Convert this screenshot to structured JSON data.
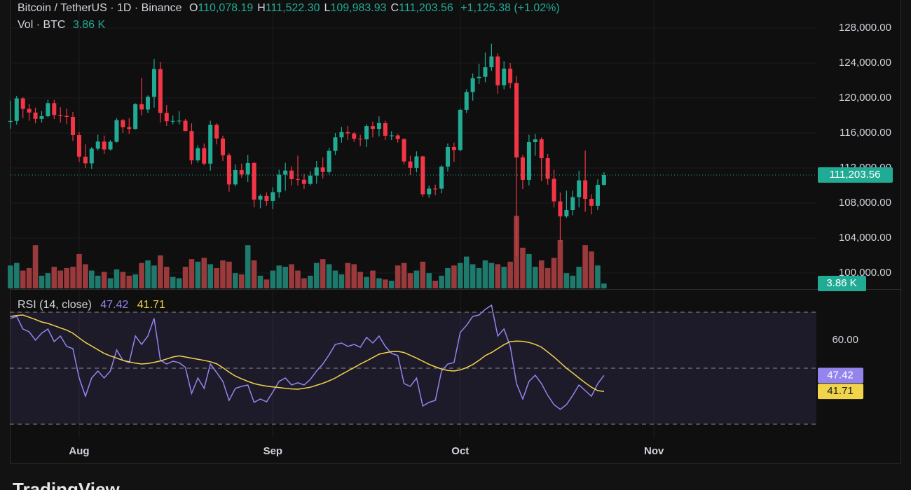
{
  "header": {
    "symbol": "Bitcoin / TetherUS · 1D · Binance",
    "ohlc": [
      {
        "key": "O",
        "value": "110,078.19"
      },
      {
        "key": "H",
        "value": "111,522.30"
      },
      {
        "key": "L",
        "value": "109,983.93"
      },
      {
        "key": "C",
        "value": "111,203.56"
      }
    ],
    "change": "+1,125.38 (+1.02%)",
    "vol_label": "Vol · BTC",
    "vol_value": "3.86 K"
  },
  "rsi_header": {
    "label": "RSI (14, close)",
    "rsi_value": "47.42",
    "ma_value": "41.71"
  },
  "footer": {
    "brand": "TradingView"
  },
  "chart_data": [
    {
      "type": "candlestick",
      "up_color": "#22ab94",
      "down_color": "#f23645",
      "xlim": [
        -0.1,
        129
      ],
      "xticks": [
        {
          "value": 11,
          "label": "Aug"
        },
        {
          "value": 42,
          "label": "Sep"
        },
        {
          "value": 72,
          "label": "Oct"
        },
        {
          "value": 103,
          "label": "Nov"
        }
      ],
      "ylim": [
        98240,
        131200
      ],
      "yticks": [
        {
          "value": 100000,
          "label": "100,000.00"
        },
        {
          "value": 104000,
          "label": "104,000.00"
        },
        {
          "value": 108000,
          "label": "108,000.00"
        },
        {
          "value": 112000,
          "label": "112,000.00"
        },
        {
          "value": 116000,
          "label": "116,000.00"
        },
        {
          "value": 120000,
          "label": "120,000.00"
        },
        {
          "value": 124000,
          "label": "124,000.00"
        },
        {
          "value": 128000,
          "label": "128,000.00"
        }
      ],
      "grid": true,
      "last_label": "111,203.56",
      "open": [
        117265,
        117380,
        119954,
        118755,
        118340,
        117614,
        117919,
        119415,
        118062,
        117950,
        117840,
        115764,
        113297,
        112527,
        114208,
        115020,
        114120,
        114992,
        117470,
        116670,
        116462,
        119294,
        118686,
        120134,
        123306,
        118295,
        117342,
        117380,
        117405,
        116227,
        112872,
        114271,
        112500,
        116935,
        115374,
        113458,
        110124,
        111763,
        111262,
        112566,
        108377,
        108816,
        108246,
        109237,
        111240,
        111705,
        110730,
        110659,
        110187,
        111137,
        112065,
        111546,
        113960,
        115500,
        116100,
        115950,
        115340,
        115269,
        116788,
        116468,
        117137,
        115688,
        115721,
        115306,
        112748,
        112014,
        113328,
        108994,
        109643,
        109635,
        112163,
        114400,
        114056,
        118648,
        120681,
        122266,
        122425,
        123513,
        124753,
        121451,
        123354,
        121706,
        113214,
        110644,
        114958,
        115272,
        113119,
        110763,
        108187,
        106467,
        107198,
        108666,
        110588,
        108476,
        107688,
        110078.19
      ],
      "high": [
        119700,
        120250,
        120100,
        119300,
        118900,
        118500,
        119800,
        119800,
        118950,
        118800,
        118400,
        116100,
        114700,
        114400,
        115800,
        115700,
        115200,
        117700,
        117600,
        117700,
        119400,
        122300,
        120300,
        124474,
        124100,
        119200,
        118000,
        118500,
        117600,
        117100,
        114600,
        114800,
        117400,
        117100,
        115700,
        113700,
        112400,
        112500,
        113500,
        112700,
        109000,
        109200,
        109800,
        111800,
        112600,
        112200,
        113400,
        111300,
        111600,
        112800,
        113200,
        114300,
        116000,
        116700,
        116800,
        116100,
        115800,
        117000,
        117300,
        117900,
        117400,
        116200,
        115900,
        115400,
        113400,
        113900,
        113400,
        110000,
        110100,
        112300,
        114800,
        114900,
        118800,
        121000,
        122800,
        123900,
        125200,
        126200,
        125100,
        124200,
        124000,
        122500,
        113500,
        115800,
        115900,
        115500,
        113600,
        111800,
        109200,
        109400,
        109400,
        111700,
        114000,
        109000,
        110700,
        111522.3
      ],
      "low": [
        116500,
        116950,
        117700,
        117400,
        117100,
        117200,
        117800,
        117600,
        117200,
        117000,
        115100,
        112700,
        112000,
        111900,
        114000,
        113600,
        114000,
        114900,
        116000,
        115900,
        116400,
        118000,
        118300,
        118900,
        117200,
        116800,
        117000,
        117000,
        116200,
        112400,
        112600,
        112300,
        111700,
        114700,
        112800,
        109300,
        109900,
        110900,
        110400,
        107500,
        107400,
        107700,
        107300,
        108600,
        109400,
        110000,
        110000,
        109600,
        110000,
        110200,
        110800,
        111300,
        113500,
        114900,
        115200,
        115000,
        114500,
        114400,
        115500,
        115600,
        115200,
        115200,
        114900,
        112400,
        111200,
        111500,
        108700,
        108600,
        108900,
        109100,
        111600,
        112700,
        113900,
        118300,
        119700,
        121600,
        121800,
        123100,
        120500,
        121000,
        121100,
        102000,
        109600,
        110000,
        113400,
        110500,
        110100,
        107500,
        103500,
        106300,
        106600,
        107500,
        107000,
        106700,
        107200,
        109983.93
      ],
      "close": [
        117380,
        119954,
        118755,
        118340,
        117614,
        117919,
        119415,
        118062,
        117950,
        117840,
        115764,
        113297,
        112527,
        114208,
        115020,
        114120,
        114992,
        117470,
        116670,
        116462,
        119294,
        118686,
        120134,
        123306,
        118295,
        117342,
        117380,
        117405,
        116227,
        112872,
        114271,
        112500,
        116935,
        115374,
        113458,
        110124,
        111763,
        111262,
        112566,
        108377,
        108816,
        108246,
        109237,
        111240,
        111705,
        110730,
        110659,
        110187,
        111137,
        112065,
        111546,
        113960,
        115500,
        116100,
        115950,
        115340,
        115269,
        116788,
        116468,
        117137,
        115688,
        115721,
        115306,
        112748,
        112014,
        113328,
        108994,
        109643,
        109635,
        112163,
        114400,
        114056,
        118648,
        120681,
        122266,
        122425,
        123513,
        124753,
        121451,
        123354,
        121706,
        113214,
        110644,
        114958,
        115272,
        113119,
        110763,
        108187,
        106467,
        107198,
        108666,
        110588,
        108476,
        107688,
        110078.19,
        111203.56
      ]
    },
    {
      "type": "bar",
      "up_color": "#1d7a6c",
      "down_color": "#9a3a3c",
      "ylim": [
        0,
        226600
      ],
      "values": [
        18000,
        20000,
        14000,
        16000,
        34000,
        10000,
        12000,
        17000,
        14000,
        16000,
        17000,
        27000,
        19000,
        14000,
        10000,
        13000,
        8000,
        15000,
        13000,
        10000,
        11000,
        20000,
        22000,
        18000,
        26000,
        17000,
        9000,
        8000,
        17000,
        23000,
        21000,
        24000,
        19000,
        16000,
        22000,
        21000,
        12000,
        11000,
        34000,
        22000,
        10000,
        7000,
        14000,
        18000,
        17000,
        19000,
        14000,
        8000,
        10000,
        20000,
        23000,
        19000,
        14000,
        11000,
        20000,
        19000,
        13000,
        9000,
        14000,
        8000,
        7000,
        6000,
        18000,
        20000,
        12000,
        14000,
        21000,
        12000,
        6000,
        10000,
        16000,
        18000,
        20000,
        25000,
        19000,
        16000,
        22000,
        20000,
        19000,
        17000,
        21000,
        57000,
        32000,
        27000,
        17000,
        22000,
        16000,
        24000,
        38000,
        12000,
        10000,
        17000,
        34000,
        29000,
        18000,
        3860
      ]
    },
    {
      "type": "line",
      "ylim": [
        25.25,
        76.5
      ],
      "yticks": [
        {
          "value": 60,
          "label": "60.00"
        }
      ],
      "hlines": [
        70,
        50,
        30
      ],
      "series": [
        {
          "color": "#9384ee",
          "values": [
            67.8,
            68.5,
            64,
            63,
            60,
            62.5,
            64,
            59.5,
            61.5,
            57.8,
            57,
            46.5,
            40,
            46.5,
            49,
            46.5,
            49,
            56.5,
            52.8,
            52,
            61.5,
            58.5,
            61.5,
            67.8,
            52.8,
            51.5,
            52.5,
            52,
            50.3,
            41,
            46.5,
            42.8,
            51.5,
            48.5,
            45.3,
            38.5,
            42.8,
            43.5,
            44,
            37.8,
            39,
            38,
            41.5,
            45.3,
            46.5,
            44,
            44.8,
            44,
            46,
            49,
            51.5,
            54.8,
            58.5,
            59,
            57.8,
            58.5,
            57.5,
            61,
            59,
            61.5,
            57.8,
            55.3,
            54.5,
            44.5,
            43.5,
            46.5,
            36.5,
            37.8,
            38.5,
            49,
            51.5,
            52,
            62.8,
            65.3,
            68.5,
            69,
            71,
            72.5,
            61.5,
            64,
            57.8,
            44.5,
            39,
            45.3,
            47.5,
            44.5,
            40.3,
            37,
            35.3,
            37,
            40.3,
            44,
            42,
            40,
            44.5,
            47.42
          ]
        },
        {
          "color": "#f2d44b",
          "values": [
            68.5,
            68.8,
            69,
            68.2,
            67.4,
            66.5,
            66,
            65.2,
            64.4,
            63.6,
            62.5,
            60.8,
            59.2,
            57.9,
            56.6,
            55.3,
            54.4,
            53.6,
            52.8,
            52.3,
            51.8,
            51.5,
            51.7,
            52.1,
            52.6,
            53.3,
            54,
            54.4,
            54,
            53.6,
            53.2,
            52.8,
            52.3,
            51.6,
            50.2,
            48.6,
            47.2,
            46.2,
            45.3,
            44.5,
            44,
            43.6,
            43.3,
            43.1,
            42.8,
            42.6,
            42.5,
            42.8,
            43.2,
            43.9,
            44.6,
            45.5,
            46.5,
            47.8,
            49,
            50.2,
            51.5,
            52.6,
            53.8,
            55,
            55.5,
            55.9,
            56,
            55.6,
            54.6,
            53.6,
            52.5,
            51.4,
            50.5,
            49.7,
            49.2,
            49,
            49.4,
            50.2,
            51.3,
            52.8,
            54.5,
            55.6,
            57,
            58.4,
            59.5,
            59.7,
            59.6,
            59.2,
            58.5,
            57.5,
            55.8,
            54,
            52,
            50,
            48.3,
            46.5,
            44.8,
            43.2,
            42,
            41.71
          ]
        }
      ]
    }
  ]
}
